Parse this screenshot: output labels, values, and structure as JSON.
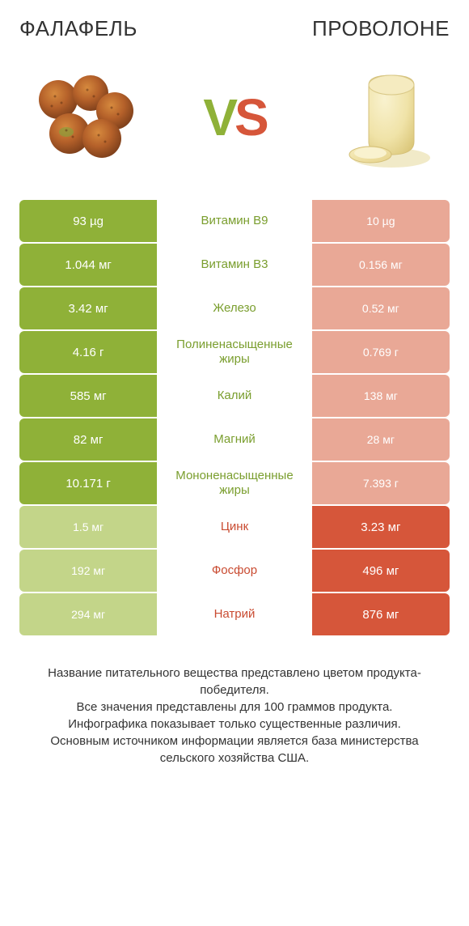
{
  "colors": {
    "green_winner": "#8fb138",
    "green_loser": "#c3d589",
    "red_winner": "#d6563a",
    "red_loser": "#e9a896",
    "green_text": "#7a9e2e",
    "red_text": "#c94b31",
    "white": "#ffffff"
  },
  "left_title": "ФАЛАФЕЛЬ",
  "right_title": "ПРОВОЛОНЕ",
  "vs": {
    "v": "V",
    "s": "S"
  },
  "rows": [
    {
      "nutrient": "Витамин B9",
      "left": "93 µg",
      "right": "10 µg",
      "winner": "left"
    },
    {
      "nutrient": "Витамин B3",
      "left": "1.044 мг",
      "right": "0.156 мг",
      "winner": "left"
    },
    {
      "nutrient": "Железо",
      "left": "3.42 мг",
      "right": "0.52 мг",
      "winner": "left"
    },
    {
      "nutrient": "Полиненасыщенные жиры",
      "left": "4.16 г",
      "right": "0.769 г",
      "winner": "left"
    },
    {
      "nutrient": "Калий",
      "left": "585 мг",
      "right": "138 мг",
      "winner": "left"
    },
    {
      "nutrient": "Магний",
      "left": "82 мг",
      "right": "28 мг",
      "winner": "left"
    },
    {
      "nutrient": "Мононенасыщенные жиры",
      "left": "10.171 г",
      "right": "7.393 г",
      "winner": "left"
    },
    {
      "nutrient": "Цинк",
      "left": "1.5 мг",
      "right": "3.23 мг",
      "winner": "right"
    },
    {
      "nutrient": "Фосфор",
      "left": "192 мг",
      "right": "496 мг",
      "winner": "right"
    },
    {
      "nutrient": "Натрий",
      "left": "294 мг",
      "right": "876 мг",
      "winner": "right"
    }
  ],
  "footer_lines": [
    "Название питательного вещества представлено цветом продукта-победителя.",
    "Все значения представлены для 100 граммов продукта.",
    "Инфографика показывает только существенные различия.",
    "Основным источником информации является база министерства сельского хозяйства США."
  ]
}
